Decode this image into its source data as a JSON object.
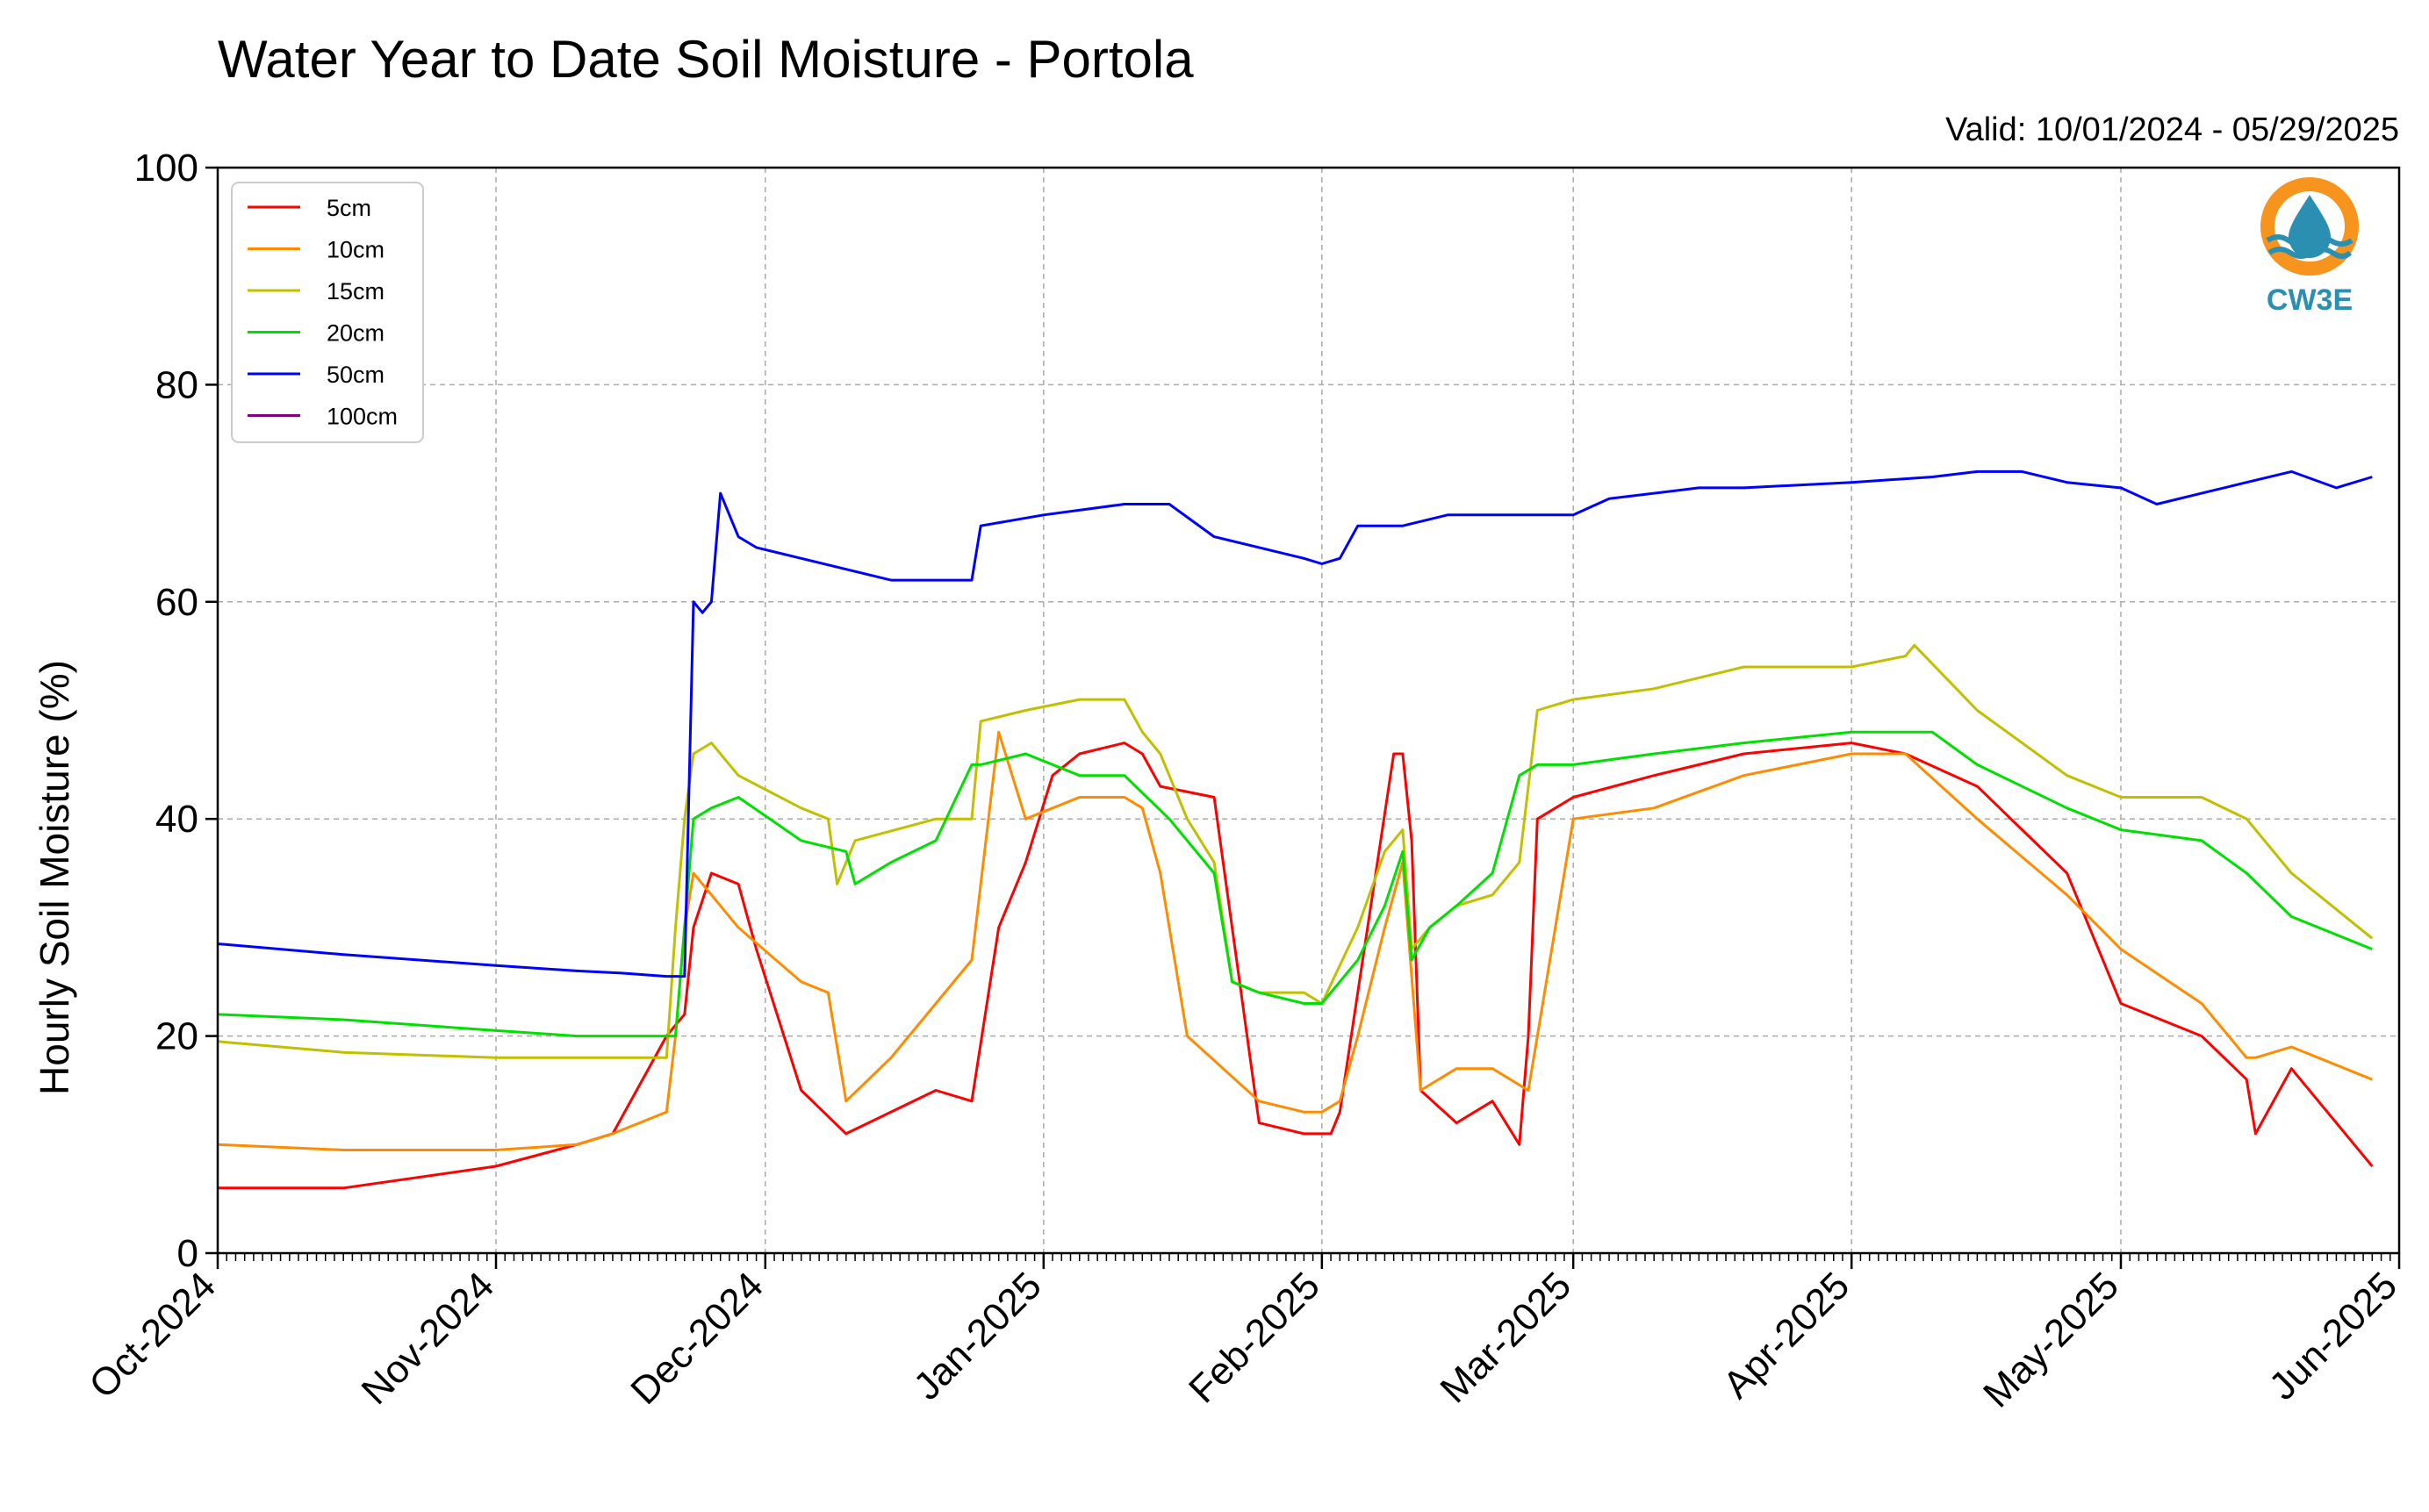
{
  "chart_data": {
    "type": "line",
    "title": "Water Year to Date Soil Moisture - Portola",
    "subtitle": "Valid: 10/01/2024 - 05/29/2025",
    "xlabel": "",
    "ylabel": "Hourly Soil Moisture (%)",
    "ylim": [
      0,
      100
    ],
    "yticks": [
      0,
      20,
      40,
      60,
      80,
      100
    ],
    "xlim": [
      "2024-10-01",
      "2025-06-01"
    ],
    "xticks": [
      {
        "date": "2024-10-01",
        "label": "Oct-2024"
      },
      {
        "date": "2024-11-01",
        "label": "Nov-2024"
      },
      {
        "date": "2024-12-01",
        "label": "Dec-2024"
      },
      {
        "date": "2025-01-01",
        "label": "Jan-2025"
      },
      {
        "date": "2025-02-01",
        "label": "Feb-2025"
      },
      {
        "date": "2025-03-01",
        "label": "Mar-2025"
      },
      {
        "date": "2025-04-01",
        "label": "Apr-2025"
      },
      {
        "date": "2025-05-01",
        "label": "May-2025"
      },
      {
        "date": "2025-06-01",
        "label": "Jun-2025"
      }
    ],
    "grid": true,
    "legend_position": "top-left",
    "series": [
      {
        "name": "5cm",
        "color": "#ff0000",
        "x": [
          "2024-10-01",
          "2024-10-15",
          "2024-11-01",
          "2024-11-10",
          "2024-11-14",
          "2024-11-20",
          "2024-11-21",
          "2024-11-22",
          "2024-11-23",
          "2024-11-25",
          "2024-11-28",
          "2024-11-30",
          "2024-12-05",
          "2024-12-10",
          "2024-12-20",
          "2024-12-24",
          "2024-12-27",
          "2024-12-30",
          "2025-01-02",
          "2025-01-05",
          "2025-01-10",
          "2025-01-12",
          "2025-01-14",
          "2025-01-20",
          "2025-01-25",
          "2025-01-30",
          "2025-02-01",
          "2025-02-02",
          "2025-02-03",
          "2025-02-05",
          "2025-02-09",
          "2025-02-10",
          "2025-02-11",
          "2025-02-12",
          "2025-02-16",
          "2025-02-20",
          "2025-02-23",
          "2025-02-24",
          "2025-02-25",
          "2025-03-01",
          "2025-03-10",
          "2025-03-20",
          "2025-04-01",
          "2025-04-07",
          "2025-04-15",
          "2025-04-25",
          "2025-05-01",
          "2025-05-10",
          "2025-05-15",
          "2025-05-16",
          "2025-05-20",
          "2025-05-24",
          "2025-05-29"
        ],
        "y": [
          6,
          6,
          8,
          10,
          11,
          20,
          21,
          22,
          30,
          35,
          34,
          28,
          15,
          11,
          15,
          14,
          30,
          36,
          44,
          46,
          47,
          46,
          43,
          42,
          12,
          11,
          11,
          11,
          13,
          24,
          46,
          46,
          38,
          15,
          12,
          14,
          10,
          20,
          40,
          42,
          44,
          46,
          47,
          46,
          43,
          35,
          23,
          20,
          16,
          11,
          17,
          13,
          8
        ]
      },
      {
        "name": "10cm",
        "color": "#ff8c00",
        "x": [
          "2024-10-01",
          "2024-10-15",
          "2024-11-01",
          "2024-11-10",
          "2024-11-14",
          "2024-11-20",
          "2024-11-21",
          "2024-11-22",
          "2024-11-23",
          "2024-11-28",
          "2024-12-05",
          "2024-12-08",
          "2024-12-10",
          "2024-12-15",
          "2024-12-20",
          "2024-12-24",
          "2024-12-27",
          "2024-12-30",
          "2025-01-05",
          "2025-01-10",
          "2025-01-12",
          "2025-01-14",
          "2025-01-17",
          "2025-01-25",
          "2025-01-30",
          "2025-02-01",
          "2025-02-03",
          "2025-02-05",
          "2025-02-08",
          "2025-02-10",
          "2025-02-12",
          "2025-02-16",
          "2025-02-20",
          "2025-02-24",
          "2025-02-25",
          "2025-03-01",
          "2025-03-10",
          "2025-03-20",
          "2025-04-01",
          "2025-04-07",
          "2025-04-15",
          "2025-04-25",
          "2025-05-01",
          "2025-05-10",
          "2025-05-15",
          "2025-05-16",
          "2025-05-20",
          "2025-05-29"
        ],
        "y": [
          10,
          9.5,
          9.5,
          10,
          11,
          13,
          20,
          30,
          35,
          30,
          25,
          24,
          14,
          18,
          23,
          27,
          48,
          40,
          42,
          42,
          41,
          35,
          20,
          14,
          13,
          13,
          14,
          20,
          30,
          36,
          15,
          17,
          17,
          15,
          20,
          40,
          41,
          44,
          46,
          46,
          40,
          33,
          28,
          23,
          18,
          18,
          19,
          16
        ]
      },
      {
        "name": "15cm",
        "color": "#c0c000",
        "x": [
          "2024-10-01",
          "2024-10-15",
          "2024-11-01",
          "2024-11-10",
          "2024-11-14",
          "2024-11-20",
          "2024-11-21",
          "2024-11-22",
          "2024-11-23",
          "2024-11-25",
          "2024-11-28",
          "2024-12-05",
          "2024-12-08",
          "2024-12-09",
          "2024-12-11",
          "2024-12-20",
          "2024-12-24",
          "2024-12-25",
          "2024-12-30",
          "2025-01-05",
          "2025-01-10",
          "2025-01-12",
          "2025-01-14",
          "2025-01-17",
          "2025-01-20",
          "2025-01-22",
          "2025-01-25",
          "2025-01-30",
          "2025-02-01",
          "2025-02-05",
          "2025-02-08",
          "2025-02-10",
          "2025-02-11",
          "2025-02-13",
          "2025-02-16",
          "2025-02-20",
          "2025-02-23",
          "2025-02-25",
          "2025-03-01",
          "2025-03-10",
          "2025-03-20",
          "2025-04-01",
          "2025-04-07",
          "2025-04-08",
          "2025-04-15",
          "2025-04-25",
          "2025-05-01",
          "2025-05-10",
          "2025-05-15",
          "2025-05-20",
          "2025-05-29"
        ],
        "y": [
          19.5,
          18.5,
          18,
          18,
          18,
          18,
          30,
          40,
          46,
          47,
          44,
          41,
          40,
          34,
          38,
          40,
          40,
          49,
          50,
          51,
          51,
          48,
          46,
          40,
          36,
          25,
          24,
          24,
          23,
          30,
          37,
          39,
          28,
          30,
          32,
          33,
          36,
          50,
          51,
          52,
          54,
          54,
          55,
          56,
          50,
          44,
          42,
          42,
          40,
          35,
          29
        ]
      },
      {
        "name": "20cm",
        "color": "#00e000",
        "x": [
          "2024-10-01",
          "2024-10-15",
          "2024-11-01",
          "2024-11-10",
          "2024-11-14",
          "2024-11-20",
          "2024-11-21",
          "2024-11-22",
          "2024-11-23",
          "2024-11-25",
          "2024-11-28",
          "2024-12-05",
          "2024-12-10",
          "2024-12-11",
          "2024-12-15",
          "2024-12-20",
          "2024-12-24",
          "2024-12-25",
          "2024-12-30",
          "2025-01-05",
          "2025-01-10",
          "2025-01-15",
          "2025-01-20",
          "2025-01-22",
          "2025-01-25",
          "2025-01-30",
          "2025-02-01",
          "2025-02-05",
          "2025-02-08",
          "2025-02-10",
          "2025-02-11",
          "2025-02-13",
          "2025-02-16",
          "2025-02-20",
          "2025-02-23",
          "2025-02-25",
          "2025-03-01",
          "2025-03-10",
          "2025-03-20",
          "2025-04-01",
          "2025-04-10",
          "2025-04-15",
          "2025-04-25",
          "2025-05-01",
          "2025-05-10",
          "2025-05-15",
          "2025-05-20",
          "2025-05-29"
        ],
        "y": [
          22,
          21.5,
          20.5,
          20,
          20,
          20,
          20,
          30,
          40,
          41,
          42,
          38,
          37,
          34,
          36,
          38,
          45,
          45,
          46,
          44,
          44,
          40,
          35,
          25,
          24,
          23,
          23,
          27,
          32,
          37,
          27,
          30,
          32,
          35,
          44,
          45,
          45,
          46,
          47,
          48,
          48,
          45,
          41,
          39,
          38,
          35,
          31,
          28
        ]
      },
      {
        "name": "50cm",
        "color": "#0000ff",
        "x": [
          "2024-10-01",
          "2024-10-15",
          "2024-11-01",
          "2024-11-10",
          "2024-11-15",
          "2024-11-20",
          "2024-11-21",
          "2024-11-22",
          "2024-11-23",
          "2024-11-24",
          "2024-11-25",
          "2024-11-26",
          "2024-11-27",
          "2024-11-28",
          "2024-11-30",
          "2024-12-05",
          "2024-12-10",
          "2024-12-15",
          "2024-12-20",
          "2024-12-22",
          "2024-12-24",
          "2024-12-25",
          "2025-01-01",
          "2025-01-10",
          "2025-01-12",
          "2025-01-15",
          "2025-01-20",
          "2025-01-25",
          "2025-01-30",
          "2025-02-01",
          "2025-02-03",
          "2025-02-05",
          "2025-02-10",
          "2025-02-15",
          "2025-02-25",
          "2025-03-01",
          "2025-03-05",
          "2025-03-15",
          "2025-03-20",
          "2025-04-01",
          "2025-04-10",
          "2025-04-15",
          "2025-04-20",
          "2025-04-25",
          "2025-05-01",
          "2025-05-05",
          "2025-05-10",
          "2025-05-15",
          "2025-05-20",
          "2025-05-25",
          "2025-05-29"
        ],
        "y": [
          28.5,
          27.5,
          26.5,
          26,
          25.8,
          25.5,
          25.5,
          25.5,
          60,
          59,
          60,
          70,
          68,
          66,
          65,
          64,
          63,
          62,
          62,
          62,
          62,
          67,
          68,
          69,
          69,
          69,
          66,
          65,
          64,
          63.5,
          64,
          67,
          67,
          68,
          68,
          68,
          69.5,
          70.5,
          70.5,
          71,
          71.5,
          72,
          72,
          71,
          70.5,
          69,
          70,
          71,
          72,
          70.5,
          71.5
        ]
      }
    ]
  },
  "legend": {
    "items": [
      {
        "label": "5cm",
        "color": "#ff0000"
      },
      {
        "label": "10cm",
        "color": "#ff8c00"
      },
      {
        "label": "15cm",
        "color": "#c0c000"
      },
      {
        "label": "20cm",
        "color": "#00e000"
      },
      {
        "label": "50cm",
        "color": "#0000ff"
      },
      {
        "label": "100cm",
        "color": "#800080"
      }
    ]
  },
  "logo": {
    "text": "CW3E",
    "icon": "water-drop-logo-icon",
    "colors": {
      "ring": "#f7941d",
      "drop": "#2a8fb0"
    }
  }
}
